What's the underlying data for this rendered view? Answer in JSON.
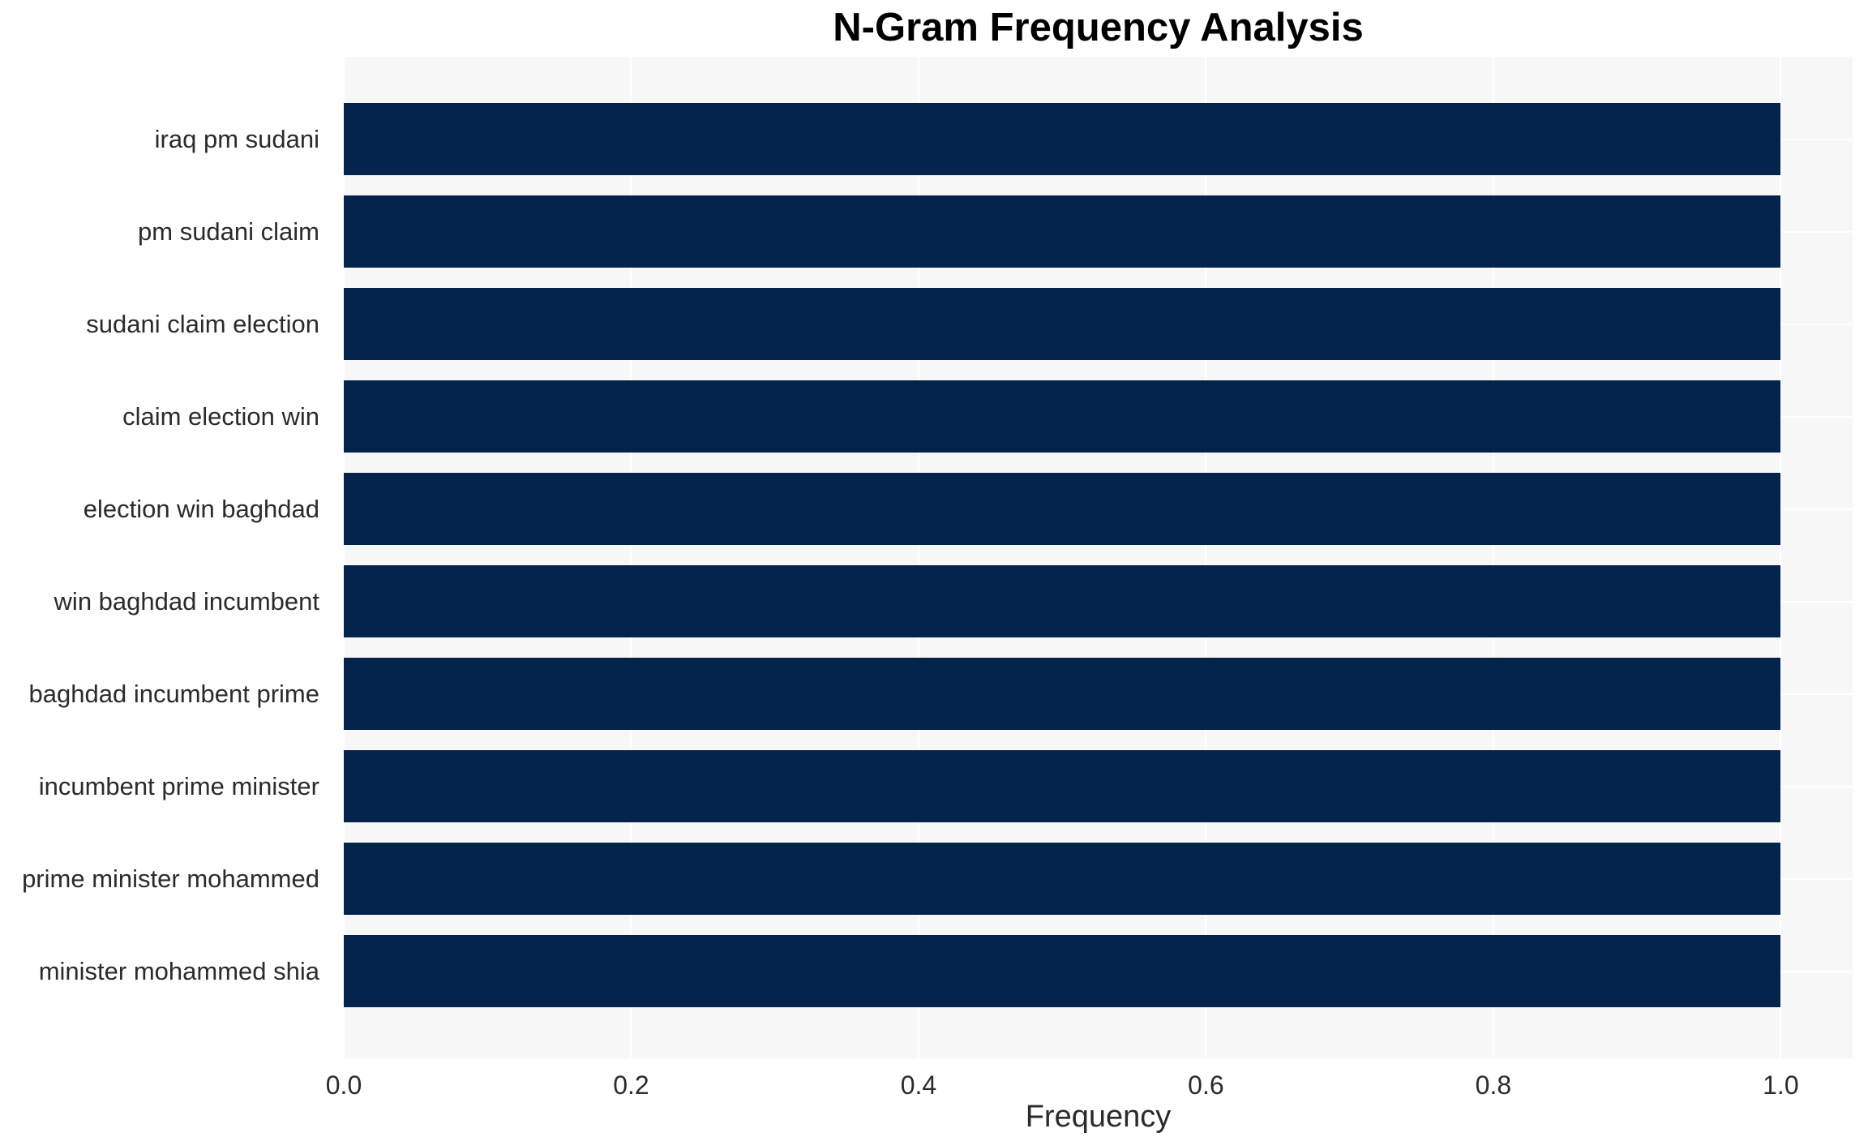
{
  "chart_data": {
    "type": "bar",
    "orientation": "horizontal",
    "title": "N-Gram Frequency Analysis",
    "xlabel": "Frequency",
    "ylabel": "",
    "categories": [
      "iraq pm sudani",
      "pm sudani claim",
      "sudani claim election",
      "claim election win",
      "election win baghdad",
      "win baghdad incumbent",
      "baghdad incumbent prime",
      "incumbent prime minister",
      "prime minister mohammed",
      "minister mohammed shia"
    ],
    "values": [
      1.0,
      1.0,
      1.0,
      1.0,
      1.0,
      1.0,
      1.0,
      1.0,
      1.0,
      1.0
    ],
    "xticks": [
      {
        "value": 0.0,
        "label": "0.0"
      },
      {
        "value": 0.2,
        "label": "0.2"
      },
      {
        "value": 0.4,
        "label": "0.4"
      },
      {
        "value": 0.6,
        "label": "0.6"
      },
      {
        "value": 0.8,
        "label": "0.8"
      },
      {
        "value": 1.0,
        "label": "1.0"
      }
    ],
    "xlim": [
      0,
      1.05
    ],
    "grid": true,
    "legend": false,
    "colors": {
      "bar": "#03234b",
      "plot_background": "#f7f7f7",
      "gridline": "#ffffff",
      "tick_text": "#2b2b2b",
      "title_text": "#000000"
    }
  }
}
